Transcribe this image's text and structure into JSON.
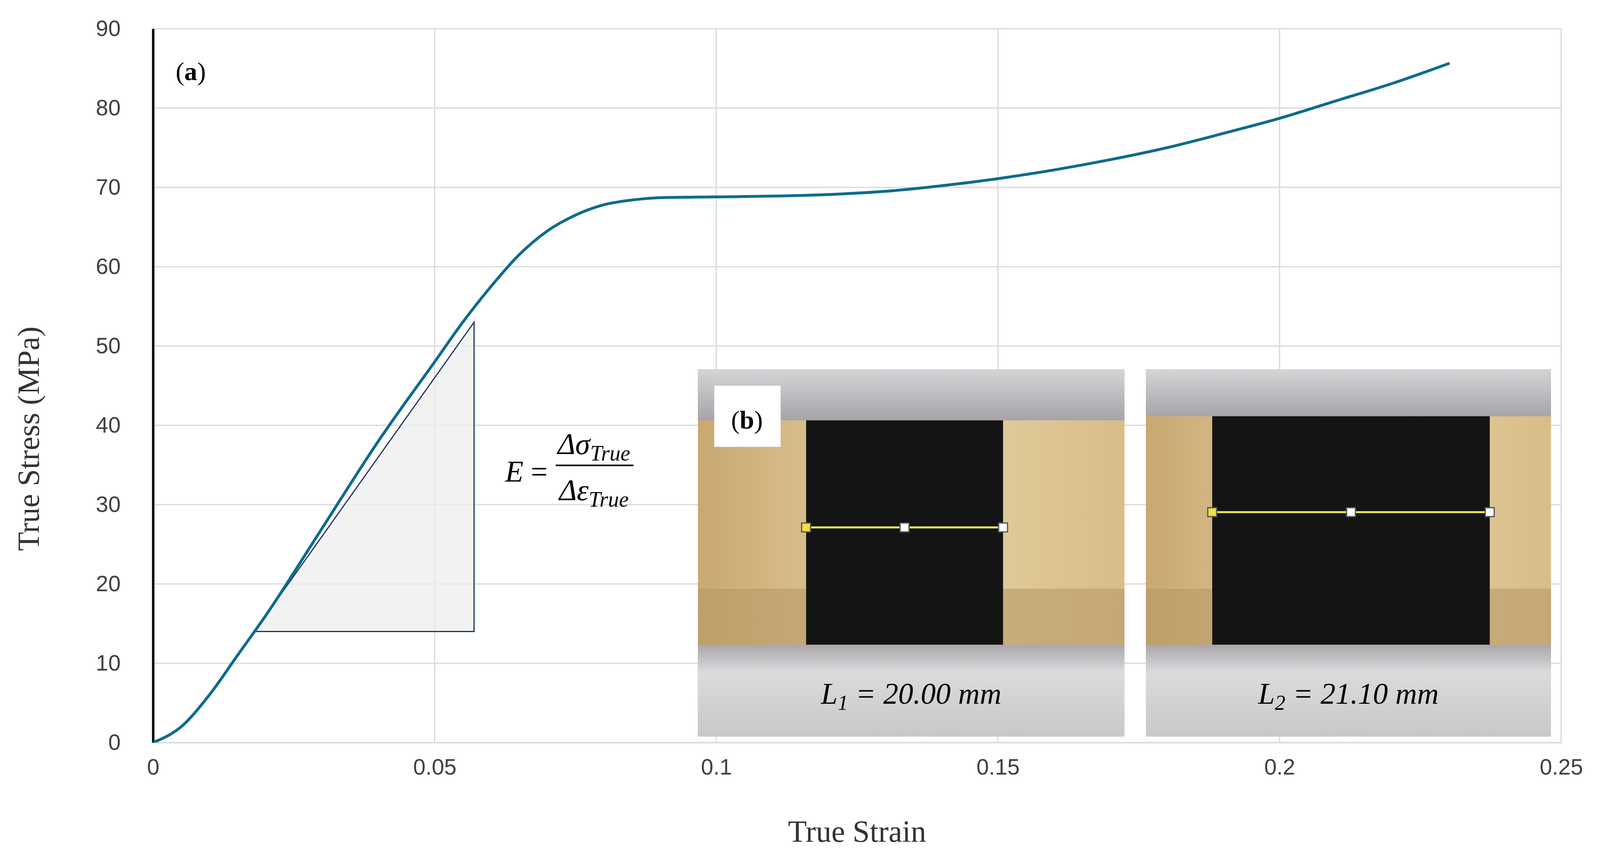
{
  "chart_data": {
    "type": "line",
    "panel_label": "(a)",
    "x_label": "True Strain",
    "y_label": "True Stress (MPa)",
    "xlim": [
      0,
      0.25
    ],
    "ylim": [
      0,
      90
    ],
    "xticks": [
      0,
      0.05,
      0.1,
      0.15,
      0.2,
      0.25
    ],
    "yticks": [
      0,
      10,
      20,
      30,
      40,
      50,
      60,
      70,
      80,
      90
    ],
    "grid": true,
    "x": [
      0,
      0.005,
      0.01,
      0.015,
      0.02,
      0.03,
      0.04,
      0.05,
      0.055,
      0.06,
      0.065,
      0.07,
      0.075,
      0.08,
      0.085,
      0.09,
      0.1,
      0.11,
      0.12,
      0.13,
      0.14,
      0.15,
      0.16,
      0.17,
      0.18,
      0.19,
      0.2,
      0.21,
      0.22,
      0.23
    ],
    "series": [
      {
        "color": "#0e6b8c",
        "values": [
          0,
          2,
          6,
          11,
          16,
          27,
          38,
          48,
          53,
          57.5,
          61.5,
          64.5,
          66.5,
          67.8,
          68.4,
          68.7,
          68.8,
          68.9,
          69.1,
          69.5,
          70.2,
          71.1,
          72.2,
          73.5,
          75,
          76.8,
          78.7,
          80.9,
          83.1,
          85.6
        ]
      }
    ],
    "slope_triangle": {
      "x": [
        0.018,
        0.057
      ],
      "y": [
        14,
        53
      ]
    },
    "formula": {
      "lhs": "E",
      "equals": "=",
      "numerator": "Δσ",
      "denominator": "Δε",
      "subscript": "True"
    },
    "inset_label": "(b)",
    "insets": [
      {
        "symbol": "L",
        "subscript": "1",
        "text": " = 20.00 mm"
      },
      {
        "symbol": "L",
        "subscript": "2",
        "text": " = 21.10 mm"
      }
    ]
  }
}
